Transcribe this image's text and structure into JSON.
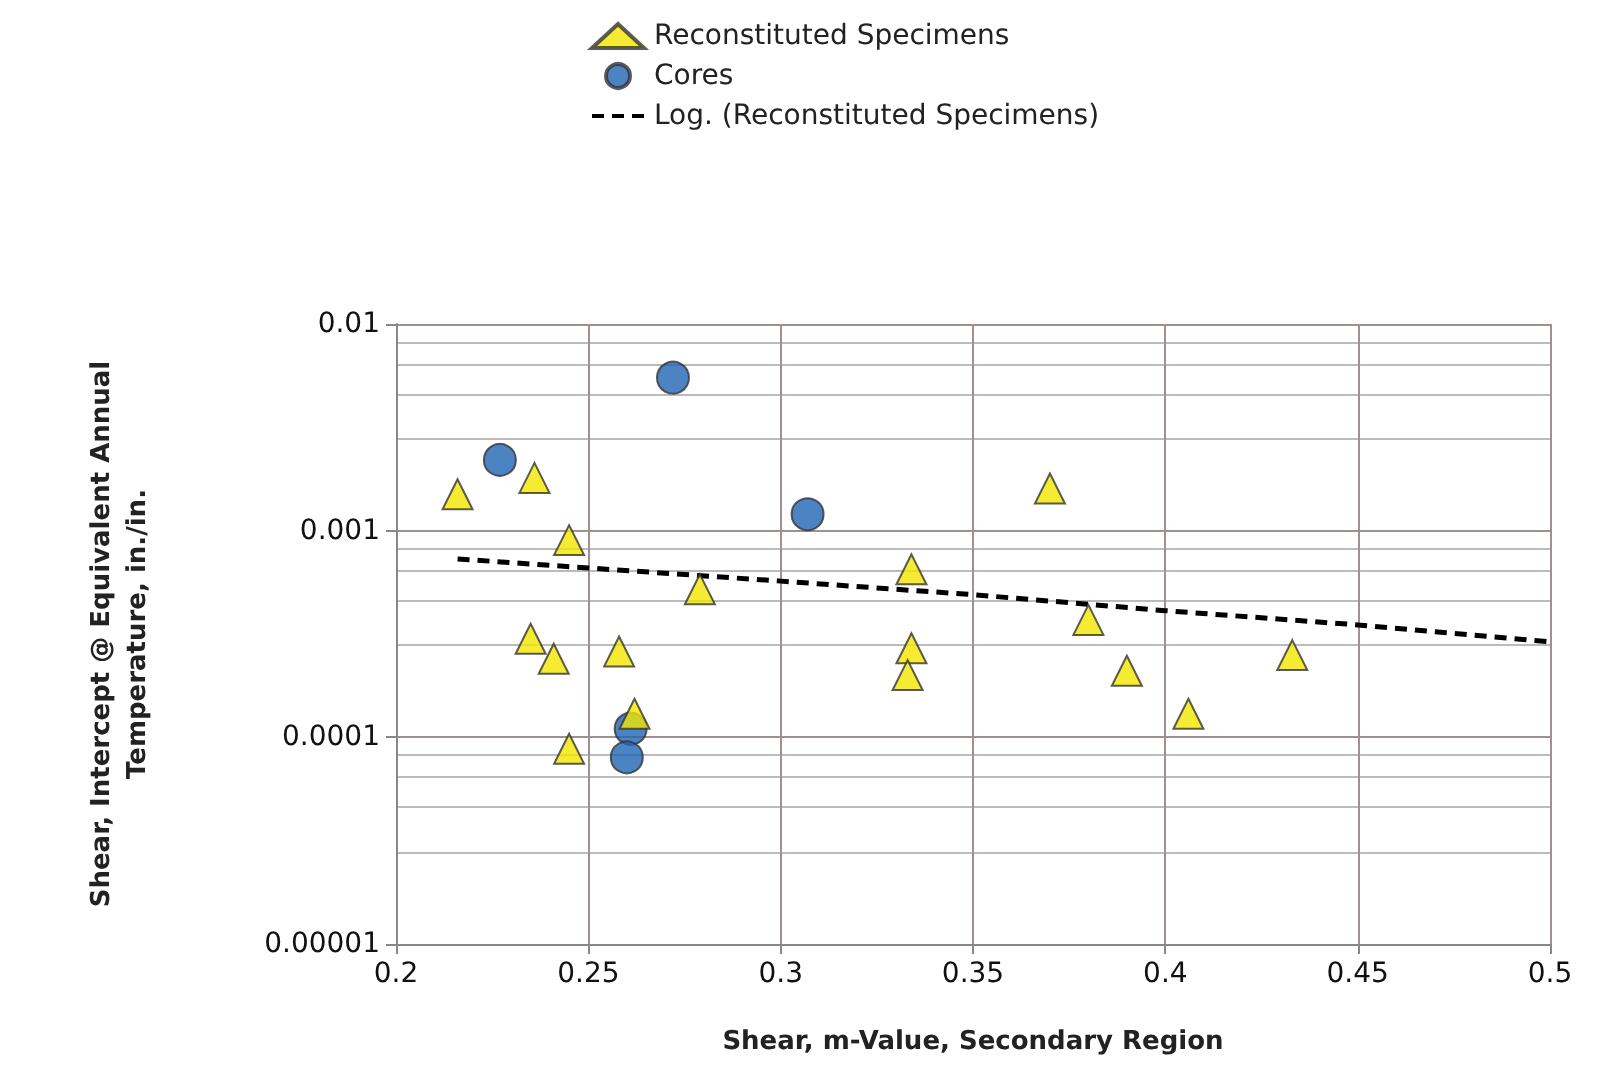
{
  "chart_data": {
    "type": "scatter",
    "xlabel": "Shear, m-Value, Secondary Region",
    "ylabel": "Shear, Intercept @ Equivalent Annual\nTemperature, in./in.",
    "xlim": [
      0.2,
      0.5
    ],
    "xticks": [
      0.2,
      0.25,
      0.3,
      0.35,
      0.4,
      0.45,
      0.5
    ],
    "ylim": [
      1e-05,
      0.01
    ],
    "yticks": [
      {
        "value": 1e-05,
        "label": "0.00001"
      },
      {
        "value": 0.0001,
        "label": "0.0001"
      },
      {
        "value": 0.001,
        "label": "0.001"
      },
      {
        "value": 0.01,
        "label": "0.01"
      }
    ],
    "log": "y",
    "grid": true,
    "legend": "top",
    "series": [
      {
        "name": "Reconstituted Specimens",
        "type": "scatter",
        "marker": "triangle",
        "color": "#f2e600",
        "x": [
          0.216,
          0.236,
          0.245,
          0.235,
          0.241,
          0.245,
          0.258,
          0.262,
          0.279,
          0.334,
          0.334,
          0.333,
          0.37,
          0.38,
          0.39,
          0.406,
          0.433
        ],
        "values": [
          0.0015,
          0.0018,
          0.0009,
          0.0003,
          0.00024,
          8.8e-05,
          0.00026,
          0.00013,
          0.00052,
          0.00065,
          0.00027,
          0.0002,
          0.0016,
          0.00037,
          0.00021,
          0.00013,
          0.00025
        ]
      },
      {
        "name": "Cores",
        "type": "scatter",
        "marker": "circle",
        "color": "#1f64b4",
        "x": [
          0.227,
          0.272,
          0.307,
          0.261,
          0.26
        ],
        "values": [
          0.0022,
          0.0055,
          0.0012,
          0.00011,
          8e-05
        ]
      },
      {
        "name": "Log. (Reconstituted Specimens)",
        "type": "line",
        "marker": "none",
        "line_style": "dashed",
        "color": "#000000",
        "x": [
          0.216,
          0.25,
          0.3,
          0.35,
          0.4,
          0.45,
          0.5
        ],
        "values": [
          0.00073,
          0.00066,
          0.00057,
          0.00049,
          0.00041,
          0.00035,
          0.00029
        ]
      }
    ]
  }
}
